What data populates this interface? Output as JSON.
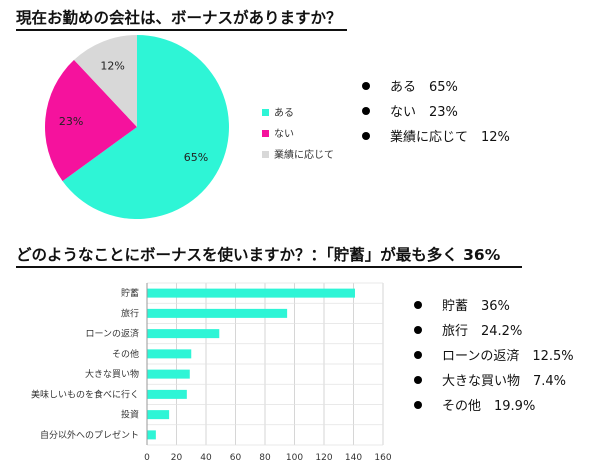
{
  "section1": {
    "title": "現在お勤めの会社は、ボーナスがありますか？",
    "bullets": [
      "ある　65%",
      "ない　23%",
      "業績に応じて　12%"
    ]
  },
  "section2": {
    "title": "どのようなことにボーナスを使いますか？：「貯蓄」が最も多く 36%",
    "bullets": [
      "貯蓄　36%",
      "旅行　24.2%",
      "ローンの返済　12.5%",
      "大きな買い物　7.4%",
      "その他　19.9%"
    ]
  },
  "colors": {
    "teal": "#2ef5d6",
    "magenta": "#f5129d",
    "gray": "#d8d8d8"
  },
  "chart_data": [
    {
      "type": "pie",
      "labels": [
        "ある",
        "ない",
        "業績に応じて"
      ],
      "values": [
        65,
        23,
        12
      ],
      "value_labels": [
        "65%",
        "23%",
        "12%"
      ],
      "colors": [
        "#2ef5d6",
        "#f5129d",
        "#d8d8d8"
      ],
      "legend": "right"
    },
    {
      "type": "bar",
      "orientation": "horizontal",
      "categories": [
        "貯蓄",
        "旅行",
        "ローンの返済",
        "その他",
        "大きな買い物",
        "美味しいものを食べに行く",
        "投資",
        "自分以外へのプレゼント"
      ],
      "values": [
        141,
        95,
        49,
        30,
        29,
        27,
        15,
        6
      ],
      "xlim": [
        0,
        160
      ],
      "xticks": [
        0,
        20,
        40,
        60,
        80,
        100,
        120,
        140,
        160
      ],
      "grid": true,
      "color": "#2ef5d6"
    }
  ]
}
